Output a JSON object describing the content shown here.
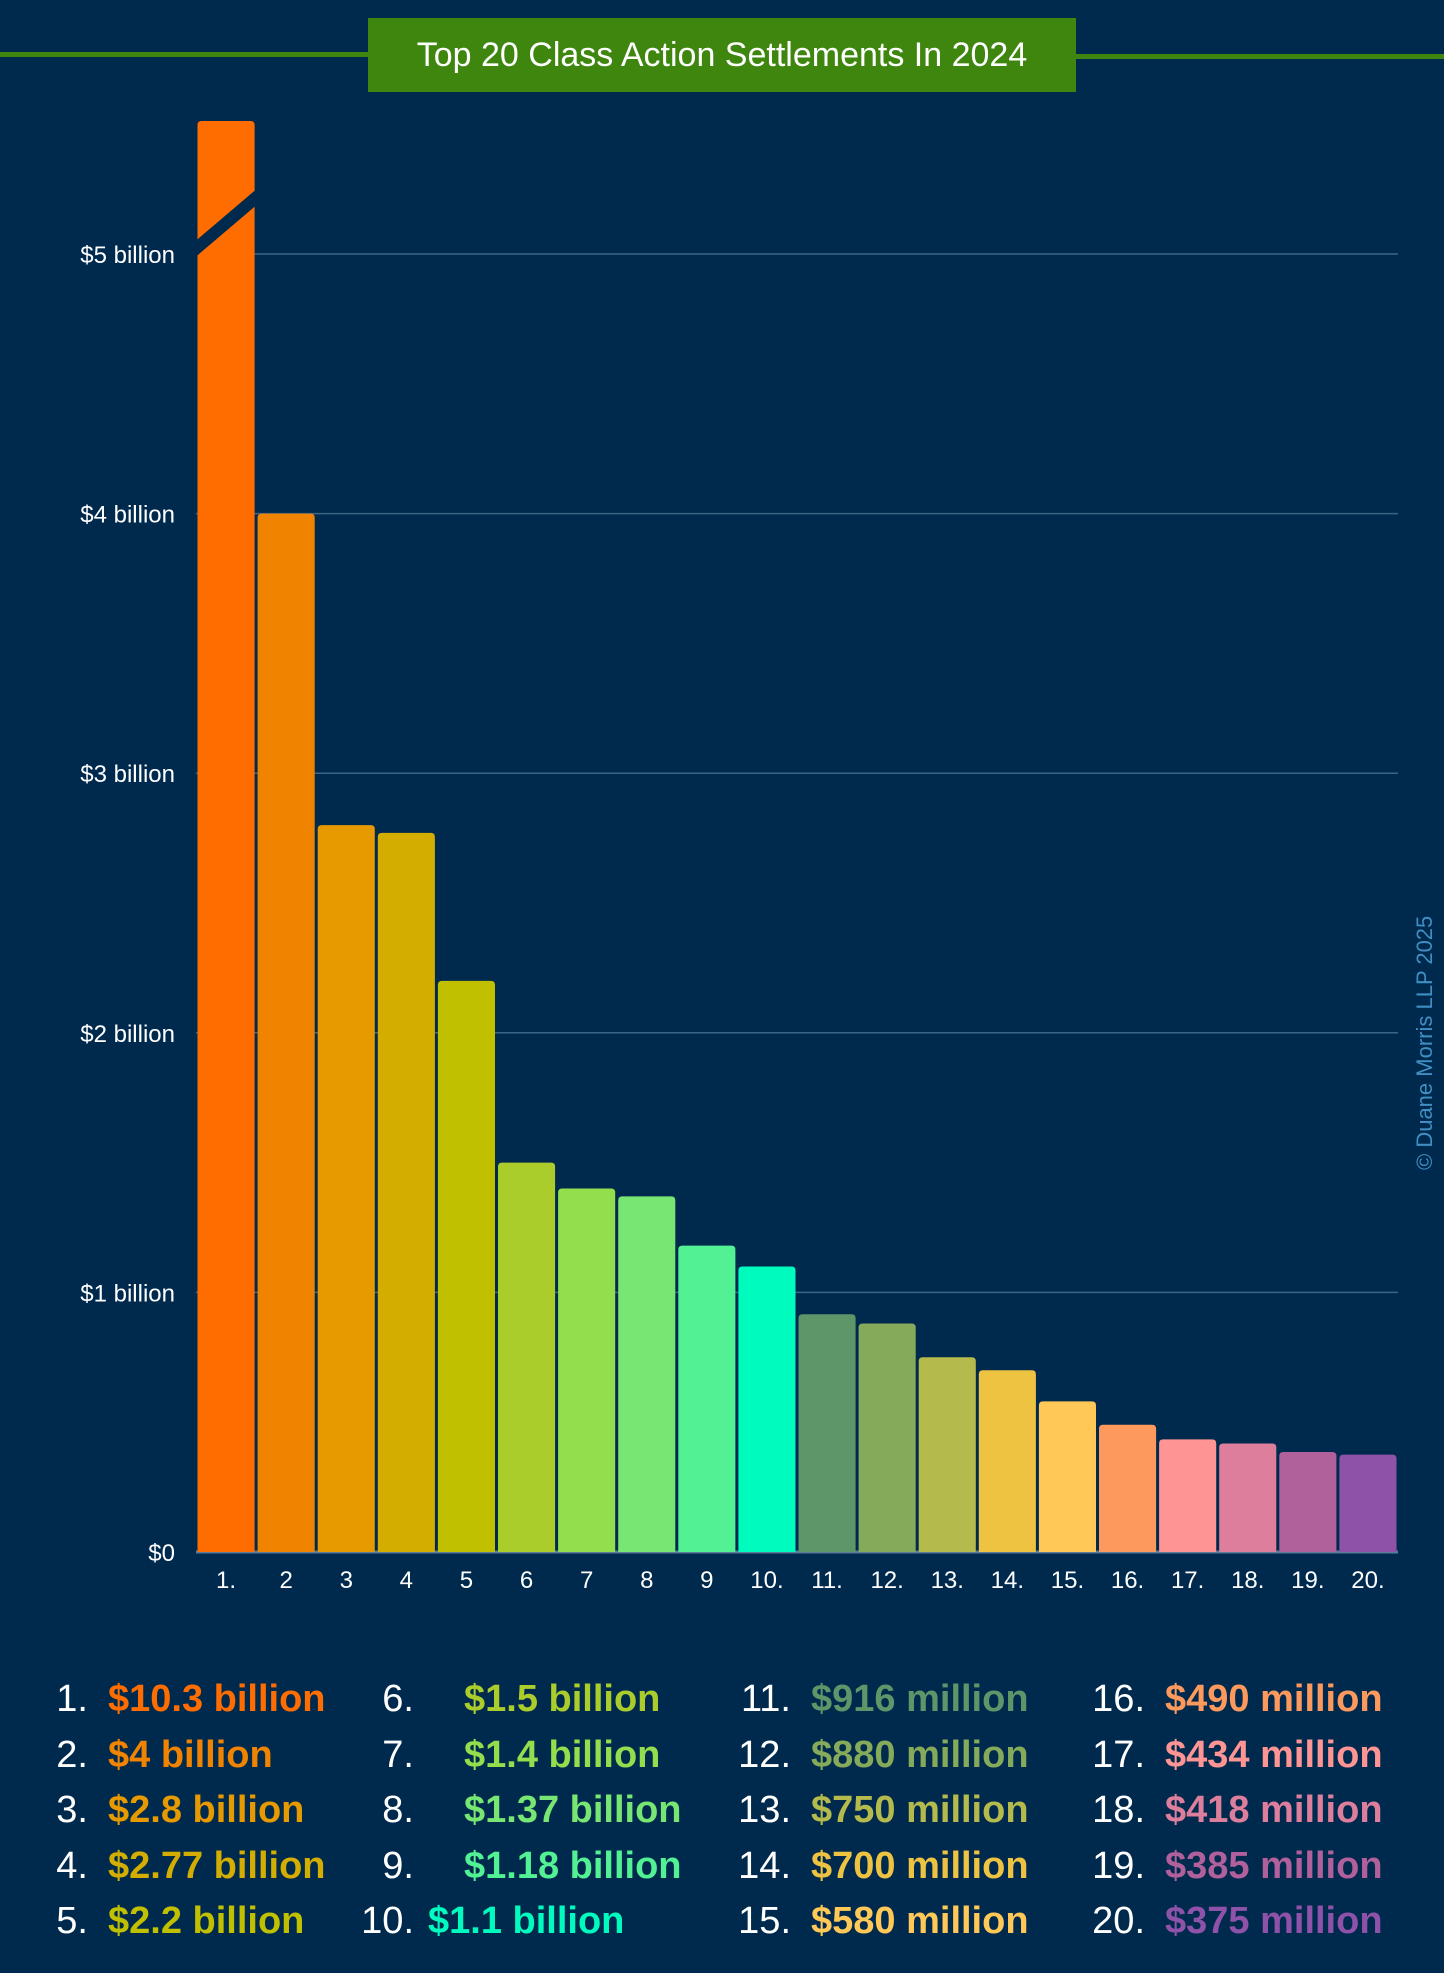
{
  "header": {
    "title": "Top 20 Class Action Settlements In 2024"
  },
  "copyright": "© Duane Morris LLP 2025",
  "chart_data": {
    "type": "bar",
    "title": "Top 20 Class Action Settlements In 2024",
    "xlabel": "",
    "ylabel": "",
    "ylim": [
      0,
      5.5
    ],
    "y_unit": "billion USD",
    "grid": true,
    "axis_break": {
      "category_index": 0,
      "note": "bar 1 truncated with break mark above $5 billion"
    },
    "yticks": [
      {
        "value": 0,
        "label": "$0"
      },
      {
        "value": 1,
        "label": "$1 billion"
      },
      {
        "value": 2,
        "label": "$2 billion"
      },
      {
        "value": 3,
        "label": "$3 billion"
      },
      {
        "value": 4,
        "label": "$4 billion"
      },
      {
        "value": 5,
        "label": "$5 billion"
      }
    ],
    "categories": [
      "1.",
      "2",
      "3",
      "4",
      "5",
      "6",
      "7",
      "8",
      "9",
      "10.",
      "11.",
      "12.",
      "13.",
      "14.",
      "15.",
      "16.",
      "17.",
      "18.",
      "19.",
      "20."
    ],
    "values": [
      10.3,
      4.0,
      2.8,
      2.77,
      2.2,
      1.5,
      1.4,
      1.37,
      1.18,
      1.1,
      0.916,
      0.88,
      0.75,
      0.7,
      0.58,
      0.49,
      0.434,
      0.418,
      0.385,
      0.375
    ],
    "colors": [
      "#ff6d00",
      "#f08400",
      "#e69a00",
      "#d3ad00",
      "#c0bf00",
      "#abcd2c",
      "#93de4d",
      "#77e672",
      "#52f294",
      "#00fbbf",
      "#5f9669",
      "#85aa5a",
      "#b5ba4c",
      "#eec342",
      "#ffc857",
      "#fe995d",
      "#fe9493",
      "#dd7f9c",
      "#b0609a",
      "#8e52a9"
    ],
    "labels": [
      "$10.3 billion",
      "$4 billion",
      "$2.8 billion",
      "$2.77 billion",
      "$2.2 billion",
      "$1.5 billion",
      "$1.4 billion",
      "$1.37 billion",
      "$1.18 billion",
      "$1.1 billion",
      "$916 million",
      "$880 million",
      "$750 million",
      "$700 million",
      "$580 million",
      "$490 million",
      "$434 million",
      "$418 million",
      "$385 million",
      "$375 million"
    ]
  },
  "legend": {
    "items": [
      {
        "num": "1.",
        "value": "$10.3 billion",
        "color": "#ff6d00"
      },
      {
        "num": "2.",
        "value": "$4 billion",
        "color": "#f08400"
      },
      {
        "num": "3.",
        "value": "$2.8 billion",
        "color": "#e69a00"
      },
      {
        "num": "4.",
        "value": "$2.77 billion",
        "color": "#d3ad00"
      },
      {
        "num": "5.",
        "value": "$2.2 billion",
        "color": "#c0bf00"
      },
      {
        "num": "6.",
        "value": "$1.5 billion",
        "color": "#abcd2c"
      },
      {
        "num": "7.",
        "value": "$1.4 billion",
        "color": "#93de4d"
      },
      {
        "num": "8.",
        "value": "$1.37 billion",
        "color": "#77e672"
      },
      {
        "num": "9.",
        "value": "$1.18 billion",
        "color": "#52f294"
      },
      {
        "num": "10.",
        "value": "$1.1 billion",
        "color": "#00fbbf"
      },
      {
        "num": "11.",
        "value": "$916 million",
        "color": "#5f9669"
      },
      {
        "num": "12.",
        "value": "$880 million",
        "color": "#85aa5a"
      },
      {
        "num": "13.",
        "value": "$750 million",
        "color": "#b5ba4c"
      },
      {
        "num": "14.",
        "value": "$700 million",
        "color": "#eec342"
      },
      {
        "num": "15.",
        "value": "$580 million",
        "color": "#ffc857"
      },
      {
        "num": "16.",
        "value": "$490 million",
        "color": "#fe995d"
      },
      {
        "num": "17.",
        "value": "$434 million",
        "color": "#fe9493"
      },
      {
        "num": "18.",
        "value": "$418 million",
        "color": "#dd7f9c"
      },
      {
        "num": "19.",
        "value": "$385 million",
        "color": "#b0609a"
      },
      {
        "num": "20.",
        "value": "$375 million",
        "color": "#8e52a9"
      }
    ]
  }
}
